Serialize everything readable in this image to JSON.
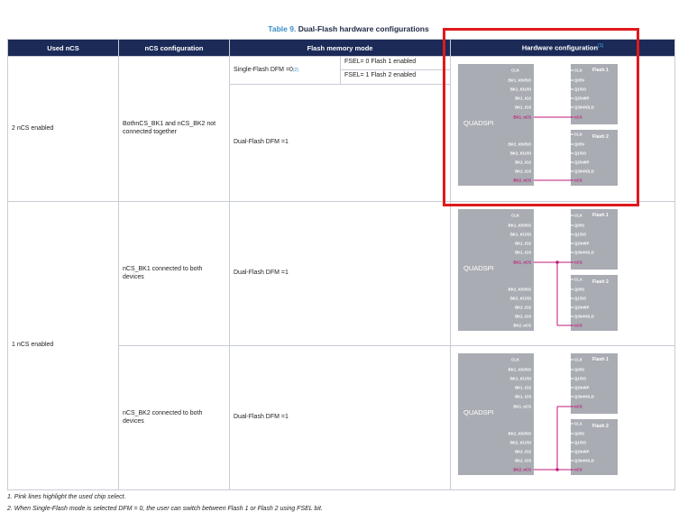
{
  "table": {
    "number": "Table 9.",
    "title": "Dual-Flash hardware configurations",
    "headers": [
      "Used nCS",
      "nCS configuration",
      "Flash memory mode",
      "Hardware configuration"
    ],
    "header_sup": "(1)",
    "rows": {
      "r1": {
        "used": "2 nCS enabled",
        "config": "BothnCS_BK1 and nCS_BK2 not connected together",
        "single_mode": "Single-Flash DFM =0",
        "single_sup": "(2)",
        "fsel0": "FSEL= 0 Flash 1 enabled",
        "fsel1": "FSEL= 1 Flash 2 enabled",
        "dual_mode": "Dual-Flash DFM =1"
      },
      "r2": {
        "used": "1 nCS enabled",
        "config": "nCS_BK1 connected to both devices",
        "mode": "Dual-Flash DFM =1"
      },
      "r3": {
        "config": "nCS_BK2 connected to both devices",
        "mode": "Dual-Flash DFM =1"
      }
    }
  },
  "diagram": {
    "quadspi": "QUADSPI",
    "flash1": "Flash 1",
    "flash2": "Flash 2",
    "clk": "CLK",
    "clka": "CLA",
    "bk1_pins": [
      "BK1_IO0/SO",
      "BK1_IO1/SI",
      "BK1_IO2",
      "BK1_IO3"
    ],
    "bk2_pins": [
      "BK2_IO0/SO",
      "BK2_IO1/SI",
      "BK2_IO2",
      "BK2_IO3"
    ],
    "bk1_ncs": "BK1_nCS",
    "bk2_ncs": "BK2_nCS",
    "flash_pins": [
      "Q0/SI",
      "Q1/SO",
      "Q2/nWP",
      "Q3/nHOLD"
    ],
    "ncs": "nCS",
    "colors": {
      "chip_select": "#c0187a",
      "block": "#a9acb3",
      "line": "#ffffff"
    }
  },
  "notes": {
    "n1": "1.   Pink lines highlight the used chip select.",
    "n2": "2.   When Single-Flash mode is selected DFM = 0, the user can switch between Flash 1 or Flash 2 using FSEL bit."
  },
  "highlight_color": "#e0191c"
}
